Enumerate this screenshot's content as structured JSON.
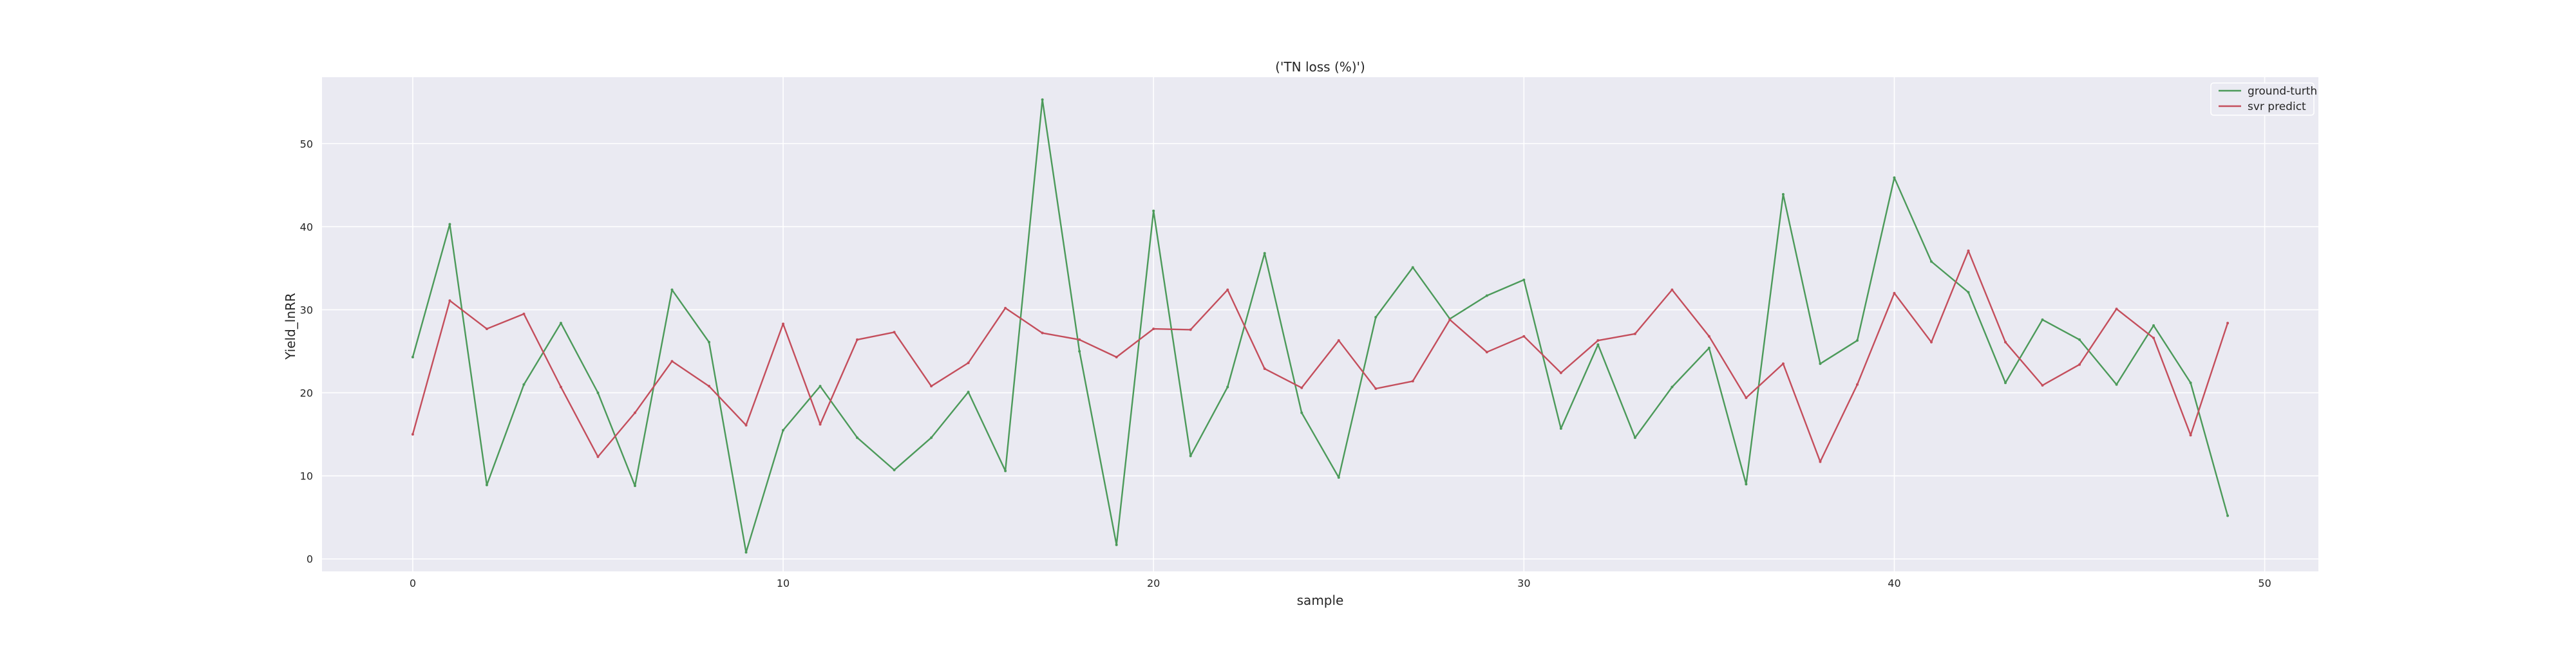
{
  "chart_data": {
    "type": "line",
    "title": "('TN loss (%)')",
    "xlabel": "sample",
    "ylabel": "Yield_lnRR",
    "xlim": [
      -2.45,
      51.45
    ],
    "ylim": [
      -1.5,
      58.0
    ],
    "xticks": [
      0,
      10,
      20,
      30,
      40,
      50
    ],
    "yticks": [
      0,
      10,
      20,
      30,
      40,
      50
    ],
    "grid": true,
    "legend_position": "top-right",
    "x": [
      0,
      1,
      2,
      3,
      4,
      5,
      6,
      7,
      8,
      9,
      10,
      11,
      12,
      13,
      14,
      15,
      16,
      17,
      18,
      19,
      20,
      21,
      22,
      23,
      24,
      25,
      26,
      27,
      28,
      29,
      30,
      31,
      32,
      33,
      34,
      35,
      36,
      37,
      38,
      39,
      40,
      41,
      42,
      43,
      44,
      45,
      46,
      47,
      48,
      49
    ],
    "series": [
      {
        "name": "ground-turth",
        "color": "#4c9a5a",
        "values": [
          24.3,
          40.3,
          8.9,
          21.0,
          28.4,
          20.0,
          8.8,
          32.4,
          26.1,
          0.8,
          15.5,
          20.8,
          14.6,
          10.7,
          14.6,
          20.1,
          10.6,
          55.3,
          25.0,
          1.7,
          41.9,
          12.4,
          20.7,
          36.8,
          17.6,
          9.8,
          29.1,
          35.1,
          28.9,
          31.7,
          33.6,
          15.7,
          25.8,
          14.6,
          20.7,
          25.4,
          9.0,
          43.9,
          23.5,
          26.3,
          45.9,
          35.8,
          32.1,
          21.2,
          28.8,
          26.4,
          21.0,
          28.1,
          21.2,
          5.2
        ]
      },
      {
        "name": "svr predict",
        "color": "#c44e5c",
        "values": [
          15.0,
          31.1,
          27.7,
          29.5,
          20.7,
          12.3,
          17.6,
          23.8,
          20.8,
          16.1,
          28.3,
          16.2,
          26.4,
          27.3,
          20.8,
          23.6,
          30.2,
          27.2,
          26.4,
          24.3,
          27.7,
          27.6,
          32.4,
          22.9,
          20.6,
          26.3,
          20.5,
          21.4,
          28.8,
          24.9,
          26.8,
          22.4,
          26.3,
          27.1,
          32.4,
          26.8,
          19.4,
          23.5,
          11.7,
          21.0,
          32.0,
          26.1,
          37.1,
          26.1,
          20.9,
          23.4,
          30.1,
          26.6,
          14.9,
          28.4
        ]
      }
    ]
  }
}
